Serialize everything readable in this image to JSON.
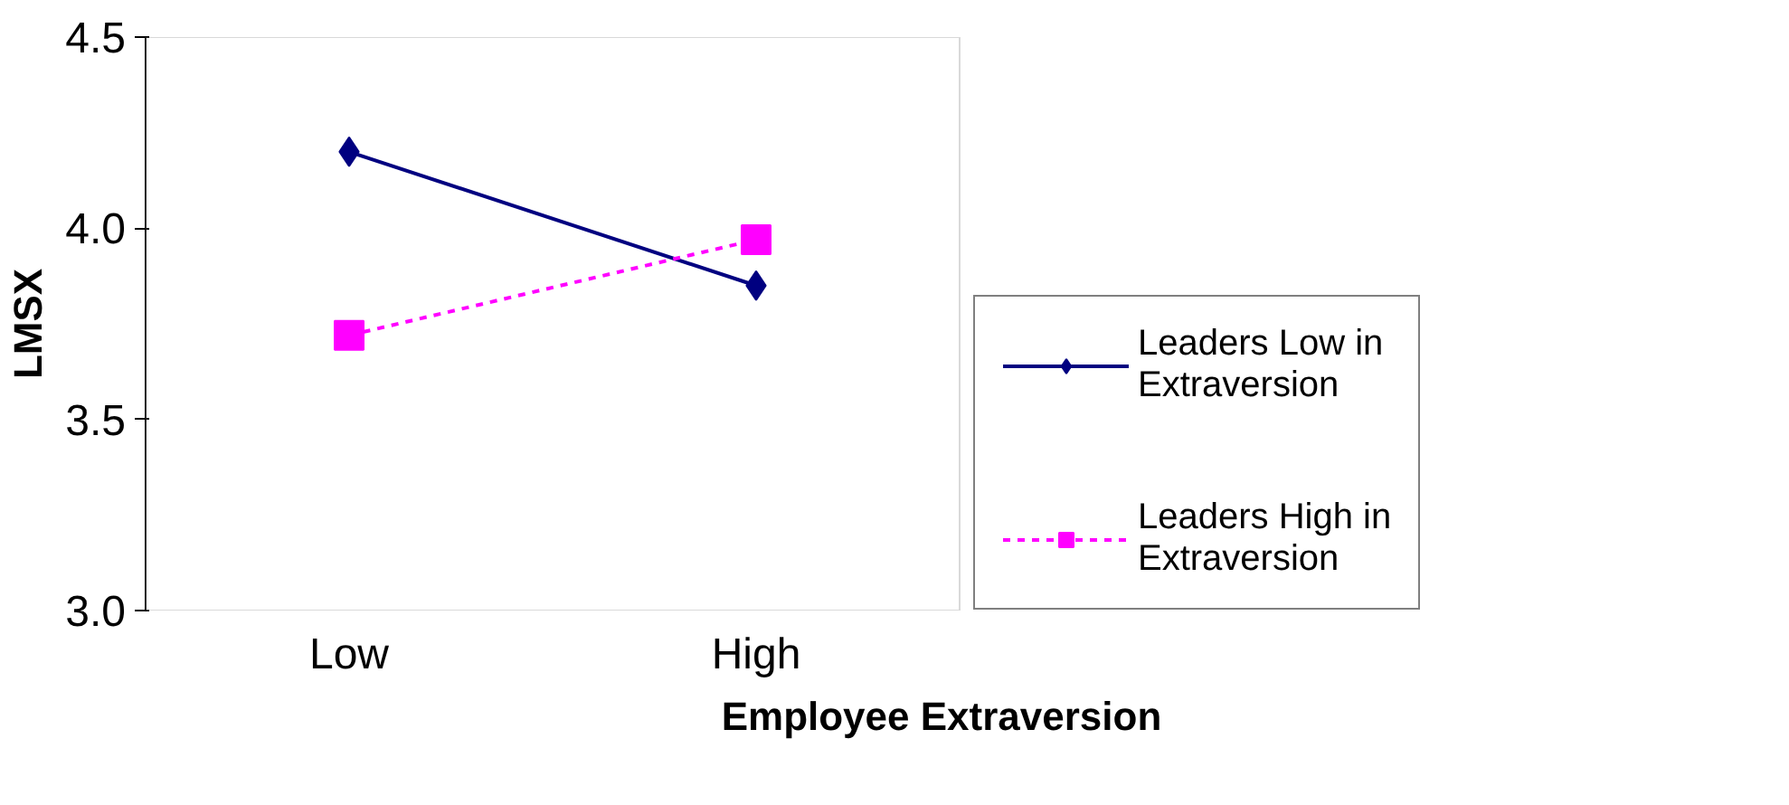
{
  "chart_data": {
    "type": "line",
    "xlabel": "Employee Extraversion",
    "ylabel": "LMSX",
    "categories": [
      "Low",
      "High"
    ],
    "series": [
      {
        "name": "Leaders Low in Extraversion",
        "color": "#000080",
        "values": [
          4.2,
          3.85
        ],
        "marker": "diamond",
        "line_style": "solid"
      },
      {
        "name": "Leaders High in Extraversion",
        "color": "#ff00ff",
        "values": [
          3.72,
          3.97
        ],
        "marker": "square",
        "line_style": "dashed"
      }
    ],
    "ylim": [
      3.0,
      4.5
    ],
    "yticks": [
      {
        "value": 3.0,
        "label": "3.0"
      },
      {
        "value": 3.5,
        "label": "3.5"
      },
      {
        "value": 4.0,
        "label": "4.0"
      },
      {
        "value": 4.5,
        "label": "4.5"
      }
    ],
    "grid": false,
    "legend": "right"
  }
}
